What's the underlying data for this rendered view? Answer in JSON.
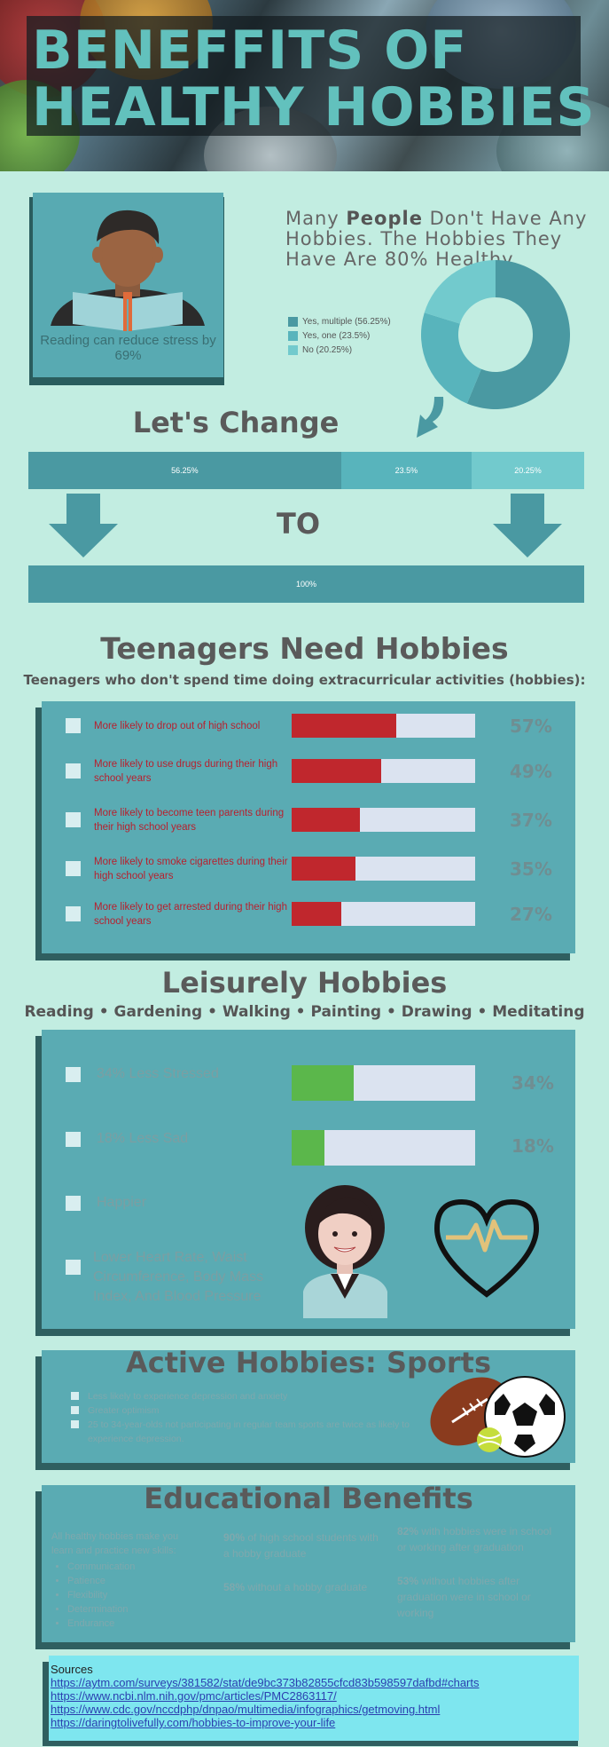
{
  "header": {
    "title_line1": "BENEFFITS OF",
    "title_line2": "HEALTHY HOBBIES"
  },
  "intro": {
    "reader_caption": "Reading can reduce stress by 69%",
    "heading_pre": "Many ",
    "heading_bold": "People",
    "heading_post": " Don't Have Any Hobbies. The Hobbies They Have Are 80% Healthy",
    "legend": [
      {
        "label": "Yes, multiple (56.25%)",
        "color": "#4a99a2",
        "value": 56.25
      },
      {
        "label": "Yes, one (23.5%)",
        "color": "#58b4bc",
        "value": 23.5
      },
      {
        "label": "No (20.25%)",
        "color": "#72cacd",
        "value": 20.25
      }
    ]
  },
  "change": {
    "title": "Let's Change",
    "to": "TO",
    "top_bar": [
      {
        "label": "56.25%",
        "value": 56.25,
        "color": "#4a99a2"
      },
      {
        "label": "23.5%",
        "value": 23.5,
        "color": "#58b4bc"
      },
      {
        "label": "20.25%",
        "value": 20.25,
        "color": "#72cacd"
      }
    ],
    "bottom_bar_label": "100%"
  },
  "teens": {
    "title": "Teenagers Need Hobbies",
    "subtitle": "Teenagers who don't spend time doing extracurricular activities (hobbies):",
    "stats": [
      {
        "text": "More likely to drop out of high school",
        "pct_label": "57%",
        "value": 0.57
      },
      {
        "text": "More likely to use drugs during their high school years",
        "pct_label": "49%",
        "value": 0.49
      },
      {
        "text": "More likely to become teen parents during their high school years",
        "pct_label": "37%",
        "value": 0.37
      },
      {
        "text": "More likely to smoke cigarettes during their high school years",
        "pct_label": "35%",
        "value": 0.35
      },
      {
        "text": "More likely to get arrested during their high school years",
        "pct_label": "27%",
        "value": 0.27
      }
    ],
    "bar_color": "#c0272d"
  },
  "leisurely": {
    "title": "Leisurely Hobbies",
    "subtitle": "Reading • Gardening • Walking • Painting • Drawing • Meditating",
    "stats": [
      {
        "text": "34% Less Stressed",
        "pct_label": "34%",
        "value": 0.34
      },
      {
        "text": "18% Less Sad",
        "pct_label": "18%",
        "value": 0.18
      }
    ],
    "items": [
      "Happier",
      "Lower Heart Rate, Waist Circumference, Body Mass Index, And Blood Pressure"
    ],
    "bar_color": "#5bb74b"
  },
  "active": {
    "title": "Active Hobbies: Sports",
    "items": [
      "Less likely to experience depression and anxiety",
      "Greater optimism",
      "25 to 34-year-olds not participating in regular team sports are twice as likely to experience depression."
    ]
  },
  "education": {
    "title": "Educational Benefits",
    "intro": "All healthy hobbies make you learn and practice new skills:",
    "skills": [
      "Communication",
      "Patience",
      "Flexibility",
      "Determination",
      "Endurance"
    ],
    "col2_a_bold": "90%",
    "col2_a_text": " of high school students with a hobby graduate",
    "col2_b_bold": "58%",
    "col2_b_text": " without a hobby graduate",
    "col3_a_bold": "82%",
    "col3_a_text": " with hobbies were in school or working after graduation",
    "col3_b_bold": "53%",
    "col3_b_text": " without hobbies after graduation were in school or working"
  },
  "sources": {
    "title": "Sources",
    "links": [
      "https://aytm.com/surveys/381582/stat/de9bc373b82855cfcd83b598597dafbd#charts",
      "https://www.ncbi.nlm.nih.gov/pmc/articles/PMC2863117/",
      "https://www.cdc.gov/nccdphp/dnpao/multimedia/infographics/getmoving.html",
      "https://daringtolivefully.com/hobbies-to-improve-your-life"
    ]
  }
}
